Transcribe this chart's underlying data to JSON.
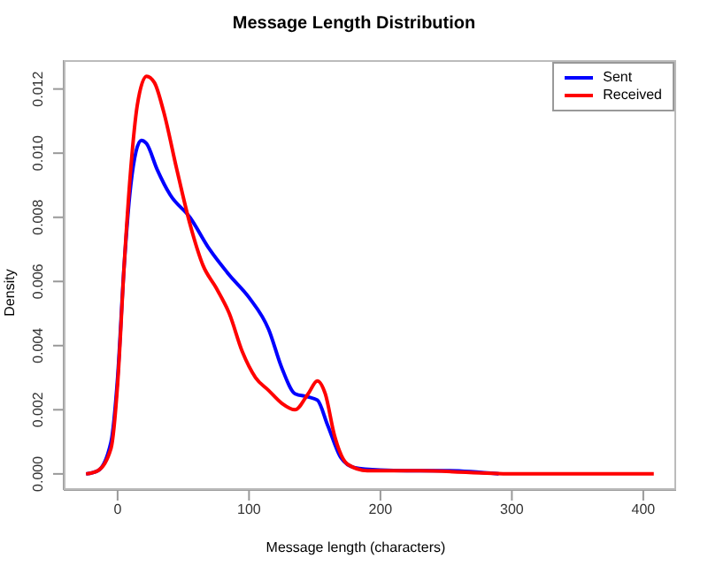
{
  "chart_data": {
    "type": "line",
    "title": "Message Length Distribution",
    "xlabel": "Message length (characters)",
    "ylabel": "Density",
    "xlim": [
      -41,
      425
    ],
    "xticks": [
      0,
      100,
      200,
      300,
      400
    ],
    "ylim": [
      -0.0005,
      0.0129
    ],
    "yticks": [
      {
        "value": 0,
        "label": "0.000"
      },
      {
        "value": 0.002,
        "label": "0.002"
      },
      {
        "value": 0.004,
        "label": "0.004"
      },
      {
        "value": 0.006,
        "label": "0.006"
      },
      {
        "value": 0.008,
        "label": "0.008"
      },
      {
        "value": 0.01,
        "label": "0.010"
      },
      {
        "value": 0.012,
        "label": "0.012"
      }
    ],
    "grid": false,
    "legend": "top right",
    "marker": "none",
    "line_style": "solid",
    "series": [
      {
        "name": "Sent",
        "color": "#0000ff",
        "x": [
          -24,
          -15,
          -5,
          0,
          5,
          10,
          18,
          22,
          30,
          40,
          55,
          70,
          85,
          100,
          115,
          125,
          135,
          145,
          152,
          160,
          170,
          180,
          200,
          220,
          235,
          250,
          290
        ],
        "values": [
          0,
          0.0001,
          0.001,
          0.003,
          0.0065,
          0.009,
          0.0104,
          0.0103,
          0.0095,
          0.0087,
          0.008,
          0.007,
          0.0062,
          0.0055,
          0.0045,
          0.0033,
          0.0025,
          0.0024,
          0.0023,
          0.0015,
          0.0005,
          0.0002,
          0.00012,
          0.0001,
          0.0001,
          0.0001,
          0
        ]
      },
      {
        "name": "Received",
        "color": "#ff0000",
        "x": [
          -24,
          -15,
          -5,
          0,
          5,
          10,
          15,
          22,
          28,
          35,
          45,
          55,
          65,
          75,
          85,
          95,
          105,
          115,
          125,
          135,
          145,
          152,
          158,
          165,
          175,
          190,
          230,
          300,
          408
        ],
        "values": [
          0,
          0.0001,
          0.0008,
          0.0028,
          0.0065,
          0.0095,
          0.0115,
          0.0124,
          0.0122,
          0.0113,
          0.0095,
          0.0078,
          0.0065,
          0.0058,
          0.005,
          0.0038,
          0.003,
          0.0026,
          0.0022,
          0.002,
          0.0025,
          0.0029,
          0.0025,
          0.0012,
          0.0003,
          0.0001,
          0.0001,
          0,
          0
        ]
      }
    ]
  }
}
